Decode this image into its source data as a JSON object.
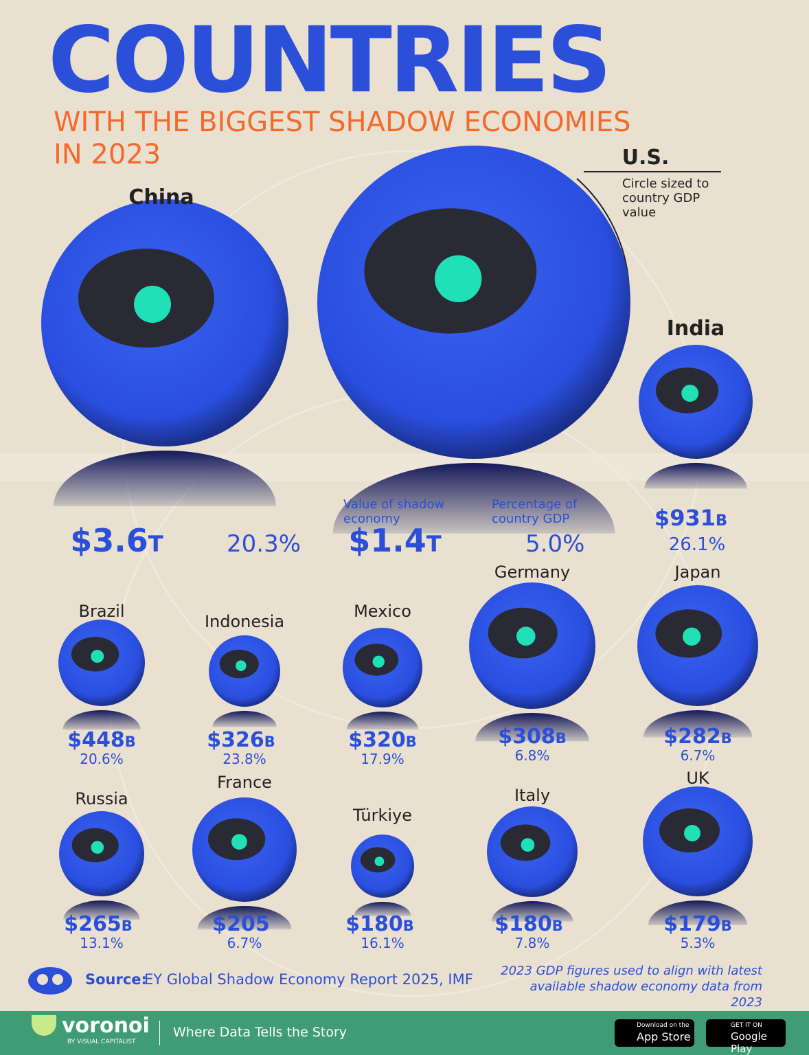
{
  "header": {
    "title": "COUNTRIES",
    "subtitle": "WITH THE BIGGEST SHADOW ECONOMIES",
    "subtitle_year": "IN 2023"
  },
  "legend": {
    "size_note": "Circle sized to country GDP value",
    "value_note": "Value of shadow economy",
    "percent_note": "Percentage of country GDP"
  },
  "countries": [
    {
      "name": "China",
      "value": "$3.6",
      "unit": "T",
      "percent": "20.3%"
    },
    {
      "name": "U.S.",
      "value": "$1.4",
      "unit": "T",
      "percent": "5.0%"
    },
    {
      "name": "India",
      "value": "$931",
      "unit": "B",
      "percent": "26.1%"
    },
    {
      "name": "Brazil",
      "value": "$448",
      "unit": "B",
      "percent": "20.6%"
    },
    {
      "name": "Indonesia",
      "value": "$326",
      "unit": "B",
      "percent": "23.8%"
    },
    {
      "name": "Mexico",
      "value": "$320",
      "unit": "B",
      "percent": "17.9%"
    },
    {
      "name": "Germany",
      "value": "$308",
      "unit": "B",
      "percent": "6.8%"
    },
    {
      "name": "Japan",
      "value": "$282",
      "unit": "B",
      "percent": "6.7%"
    },
    {
      "name": "Russia",
      "value": "$265",
      "unit": "B",
      "percent": "13.1%"
    },
    {
      "name": "France",
      "value": "$205",
      "percent": "6.7%"
    },
    {
      "name": "Türkiye",
      "value": "$180",
      "unit": "B",
      "percent": "16.1%"
    },
    {
      "name": "Italy",
      "value": "$180",
      "unit": "B",
      "percent": "7.8%"
    },
    {
      "name": "UK",
      "value": "$179",
      "unit": "B",
      "percent": "5.3%"
    }
  ],
  "footer": {
    "source_label": "Source:",
    "source": "EY Global Shadow Economy Report 2025, IMF",
    "note": "2023 GDP figures used to align with latest available shadow economy data from 2023",
    "brand": "voronoi",
    "brand_sub": "BY VISUAL CAPITALIST",
    "tagline": "Where Data Tells the Story",
    "app_store_small": "Download on the",
    "app_store": "App Store",
    "google_small": "GET IT ON",
    "google": "Google Play"
  }
}
